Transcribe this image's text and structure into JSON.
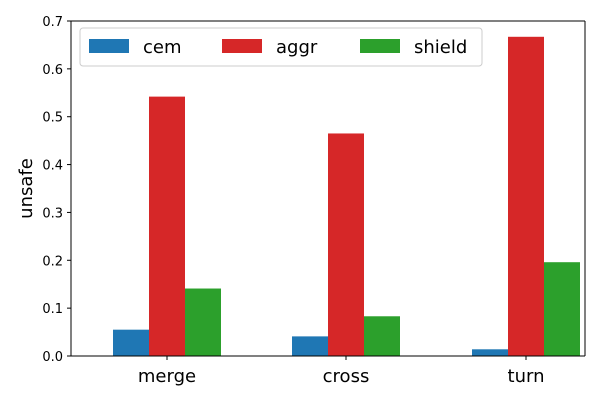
{
  "chart_data": {
    "type": "bar",
    "title": "",
    "xlabel": "",
    "ylabel": "unsafe",
    "categories": [
      "merge",
      "cross",
      "turn"
    ],
    "ylim": [
      0,
      0.7
    ],
    "yticks": [
      0.0,
      0.1,
      0.2,
      0.3,
      0.4,
      0.5,
      0.6,
      0.7
    ],
    "ytick_labels": [
      "0.0",
      "0.1",
      "0.2",
      "0.3",
      "0.4",
      "0.5",
      "0.6",
      "0.7"
    ],
    "grid": false,
    "legend": {
      "placement": "top",
      "columns": 3
    },
    "series": [
      {
        "name": "cem",
        "color": "#1f77b4",
        "values": [
          0.055,
          0.041,
          0.014
        ]
      },
      {
        "name": "aggr",
        "color": "#d62728",
        "values": [
          0.542,
          0.465,
          0.667
        ]
      },
      {
        "name": "shield",
        "color": "#2ca02c",
        "values": [
          0.141,
          0.083,
          0.196
        ]
      }
    ]
  }
}
